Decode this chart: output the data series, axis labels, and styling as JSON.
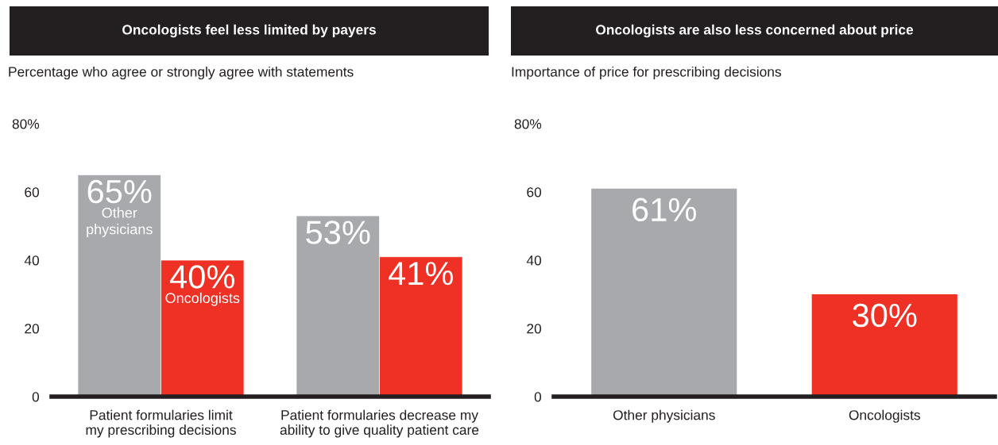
{
  "chart_data": [
    {
      "type": "bar",
      "title": "Oncologists feel less limited by payers",
      "subtitle": "Percentage who agree or strongly agree with statements",
      "categories": [
        "Patient formularies limit\nmy prescribing decisions",
        "Patient formularies decrease my\nability to give quality patient care"
      ],
      "series": [
        {
          "name": "Other physicians",
          "color": "#a7a9ac",
          "values": [
            65,
            53
          ],
          "value_labels": [
            "65%",
            "53%"
          ]
        },
        {
          "name": "Oncologists",
          "color": "#ee3124",
          "values": [
            40,
            41
          ],
          "value_labels": [
            "40%",
            "41%"
          ]
        }
      ],
      "ylim": [
        0,
        80
      ],
      "yticks": [
        0,
        20,
        40,
        60,
        {
          "value": 80,
          "label": "80%"
        }
      ],
      "grid": false
    },
    {
      "type": "bar",
      "title": "Oncologists are also less concerned about price",
      "subtitle": "Importance of price for prescribing decisions",
      "categories": [
        "Other physicians",
        "Oncologists"
      ],
      "values": [
        61,
        30
      ],
      "colors": [
        "#a7a9ac",
        "#ee3124"
      ],
      "value_labels": [
        "61%",
        "30%"
      ],
      "ylim": [
        0,
        80
      ],
      "yticks": [
        0,
        20,
        40,
        60,
        {
          "value": 80,
          "label": "80%"
        }
      ],
      "grid": false
    }
  ]
}
